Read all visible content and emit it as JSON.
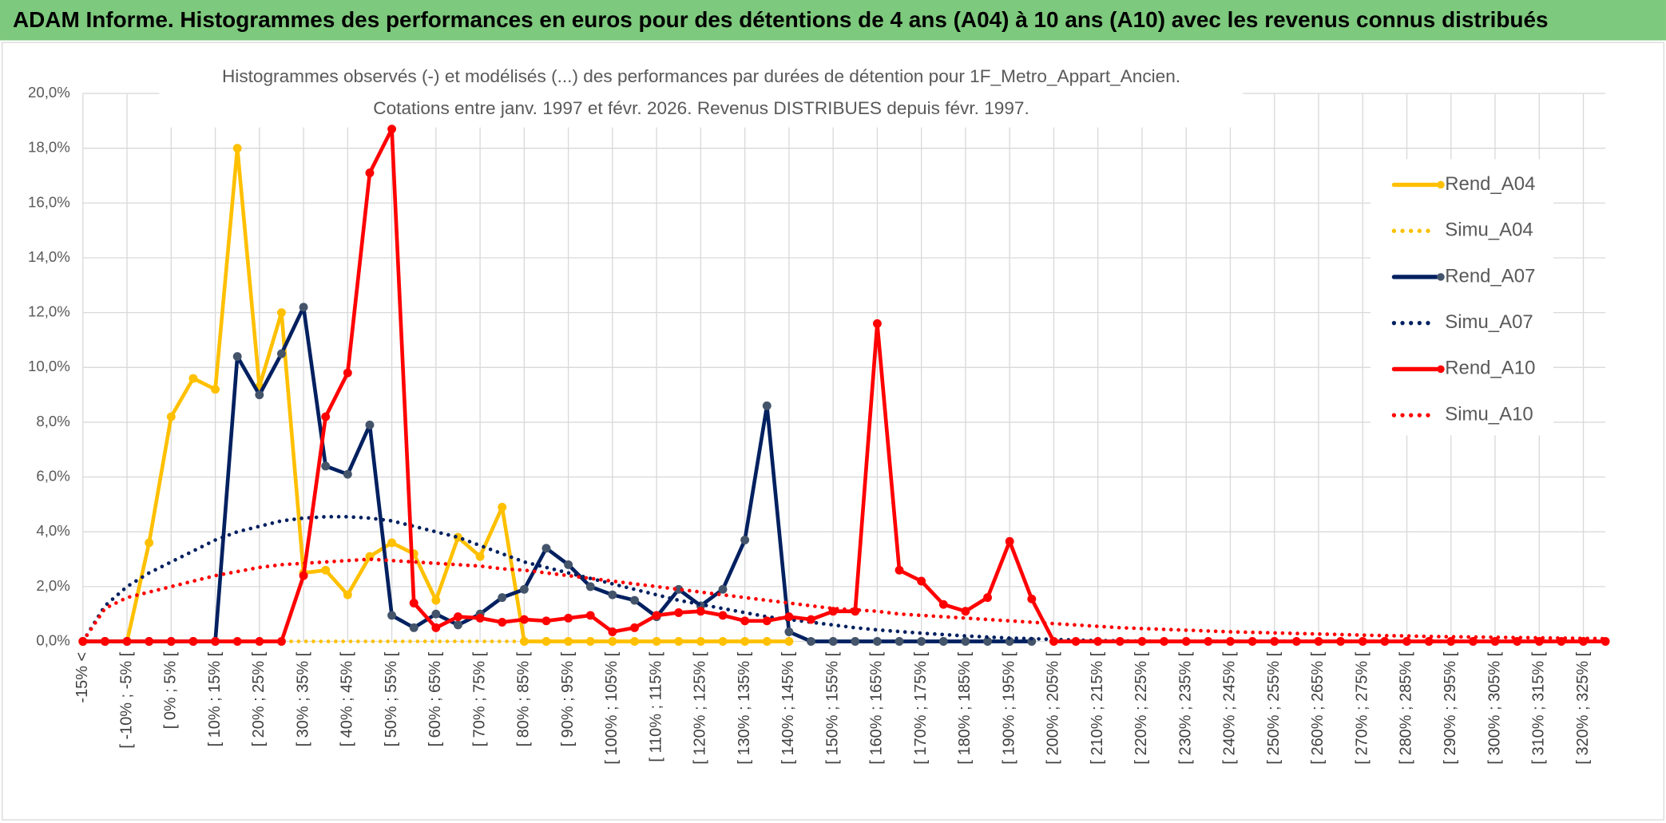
{
  "header": {
    "title": "ADAM Informe. Histogrammes des performances en euros pour des détentions de 4 ans (A04) à 10 ans (A10) avec les revenus connus distribués"
  },
  "chart_data": {
    "type": "line",
    "title": [
      "Histogrammes observés (-) et modélisés (...) des performances par durées de détention pour 1F_Metro_Appart_Ancien.",
      "Cotations entre janv. 1997 et févr. 2026. Revenus DISTRIBUES depuis févr. 1997."
    ],
    "categories": [
      "-15% <",
      null,
      "[ -10% ; -5% [",
      null,
      "[ 0% ; 5% [",
      null,
      "[ 10% ; 15% [",
      null,
      "[ 20% ; 25% [",
      null,
      "[ 30% ; 35% [",
      null,
      "[ 40% ; 45% [",
      null,
      "[ 50% ; 55% [",
      null,
      "[ 60% ; 65% [",
      null,
      "[ 70% ; 75% [",
      null,
      "[ 80% ; 85% [",
      null,
      "[ 90% ; 95% [",
      null,
      "[ 100% ; 105% [",
      null,
      "[ 110% ; 115% [",
      null,
      "[ 120% ; 125% [",
      null,
      "[ 130% ; 135% [",
      null,
      "[ 140% ; 145% [",
      null,
      "[ 150% ; 155% [",
      null,
      "[ 160% ; 165% [",
      null,
      "[ 170% ; 175% [",
      null,
      "[ 180% ; 185% [",
      null,
      "[ 190% ; 195% [",
      null,
      "[ 200% ; 205% [",
      null,
      "[ 210% ; 215% [",
      null,
      "[ 220% ; 225% [",
      null,
      "[ 230% ; 235% [",
      null,
      "[ 240% ; 245% [",
      null,
      "[ 250% ; 255% [",
      null,
      "[ 260% ; 265% [",
      null,
      "[ 270% ; 275% [",
      null,
      "[ 280% ; 285% [",
      null,
      "[ 290% ; 295% [",
      null,
      "[ 300% ; 305% [",
      null,
      "[ 310% ; 315% [",
      null,
      "[ 320% ; 325% [",
      null
    ],
    "series": [
      {
        "name": "Rend_A04",
        "color": "#ffc000",
        "style": "solid",
        "markers": true,
        "marker_color": "#ffc000",
        "values": [
          0,
          0,
          0,
          3.6,
          8.2,
          9.6,
          9.2,
          18.0,
          9.3,
          12.0,
          2.5,
          2.6,
          1.7,
          3.1,
          3.6,
          3.2,
          1.5,
          3.8,
          3.1,
          4.9,
          0,
          0,
          0,
          0,
          0,
          0,
          0,
          0,
          0,
          0,
          0,
          0,
          0,
          null,
          null,
          null,
          null,
          null,
          null,
          null,
          null,
          null,
          null,
          null,
          null,
          null,
          null,
          null,
          null,
          null,
          null,
          null,
          null,
          null,
          null,
          null,
          null,
          null,
          null,
          null,
          null,
          null,
          null,
          null,
          null,
          null,
          null,
          null,
          null,
          null
        ]
      },
      {
        "name": "Simu_A04",
        "color": "#ffc000",
        "style": "dotted",
        "markers": false,
        "values": [
          0,
          0,
          0,
          0,
          0,
          0,
          0,
          0,
          0,
          0,
          0,
          0,
          0,
          0,
          0,
          0,
          0,
          0,
          0,
          0,
          0,
          0,
          0,
          0,
          0,
          0,
          0,
          0,
          0,
          0,
          0,
          0,
          0,
          null,
          null,
          null,
          null,
          null,
          null,
          null,
          null,
          null,
          null,
          null,
          null,
          null,
          null,
          null,
          null,
          null,
          null,
          null,
          null,
          null,
          null,
          null,
          null,
          null,
          null,
          null,
          null,
          null,
          null,
          null,
          null,
          null,
          null,
          null,
          null,
          null
        ]
      },
      {
        "name": "Rend_A07",
        "color": "#002060",
        "style": "solid",
        "markers": true,
        "marker_color": "#44546a",
        "values": [
          0,
          0,
          0,
          0,
          0,
          0,
          0,
          10.4,
          9.0,
          10.5,
          12.2,
          6.4,
          6.1,
          7.9,
          0.95,
          0.5,
          1.0,
          0.6,
          1.0,
          1.6,
          1.9,
          3.4,
          2.8,
          2.0,
          1.7,
          1.5,
          0.9,
          1.9,
          1.3,
          1.9,
          3.7,
          8.6,
          0.35,
          0,
          0,
          0,
          0,
          0,
          0,
          0,
          0,
          0,
          0,
          0,
          null,
          null,
          null,
          null,
          null,
          null,
          null,
          null,
          null,
          null,
          null,
          null,
          null,
          null,
          null,
          null,
          null,
          null,
          null,
          null,
          null,
          null,
          null,
          null,
          null,
          null
        ]
      },
      {
        "name": "Simu_A07",
        "color": "#002060",
        "style": "dotted",
        "markers": false,
        "values": [
          0,
          1.3,
          2.0,
          2.5,
          2.9,
          3.3,
          3.7,
          4.0,
          4.2,
          4.4,
          4.5,
          4.55,
          4.55,
          4.5,
          4.4,
          4.2,
          4.0,
          3.8,
          3.5,
          3.2,
          2.9,
          2.7,
          2.5,
          2.3,
          2.1,
          1.9,
          1.7,
          1.5,
          1.35,
          1.2,
          1.05,
          0.9,
          0.8,
          0.7,
          0.6,
          0.5,
          0.42,
          0.36,
          0.3,
          0.25,
          0.2,
          0.16,
          0.12,
          0.1,
          0.07,
          0.05,
          0.03,
          0.02,
          0.01,
          0,
          0,
          0,
          0,
          0,
          0,
          0,
          0,
          0,
          0,
          0,
          0,
          0,
          0,
          0,
          0,
          0,
          0,
          0,
          0,
          0
        ]
      },
      {
        "name": "Rend_A10",
        "color": "#ff0000",
        "style": "solid",
        "markers": true,
        "marker_color": "#ff0000",
        "values": [
          0,
          0,
          0,
          0,
          0,
          0,
          0,
          0,
          0,
          0,
          2.4,
          8.2,
          9.8,
          17.1,
          18.7,
          1.4,
          0.5,
          0.9,
          0.85,
          0.7,
          0.8,
          0.75,
          0.85,
          0.95,
          0.35,
          0.5,
          0.95,
          1.05,
          1.1,
          0.95,
          0.75,
          0.75,
          0.9,
          0.8,
          1.1,
          1.1,
          11.6,
          2.6,
          2.2,
          1.35,
          1.1,
          1.6,
          3.65,
          1.55,
          0,
          0,
          0,
          0,
          0,
          0,
          0,
          0,
          0,
          0,
          0,
          0,
          0,
          0,
          0,
          0,
          0,
          0,
          0,
          0,
          0,
          0,
          0,
          0,
          0,
          0
        ]
      },
      {
        "name": "Simu_A10",
        "color": "#ff0000",
        "style": "dotted",
        "markers": false,
        "values": [
          0,
          1.2,
          1.6,
          1.8,
          2.0,
          2.2,
          2.4,
          2.55,
          2.7,
          2.8,
          2.85,
          2.9,
          2.95,
          3.0,
          2.95,
          2.9,
          2.85,
          2.8,
          2.75,
          2.65,
          2.6,
          2.5,
          2.4,
          2.3,
          2.2,
          2.1,
          2.0,
          1.9,
          1.8,
          1.7,
          1.6,
          1.5,
          1.4,
          1.3,
          1.2,
          1.15,
          1.1,
          1.0,
          0.95,
          0.9,
          0.85,
          0.8,
          0.75,
          0.7,
          0.65,
          0.6,
          0.55,
          0.5,
          0.47,
          0.44,
          0.41,
          0.38,
          0.35,
          0.33,
          0.31,
          0.29,
          0.27,
          0.25,
          0.23,
          0.21,
          0.2,
          0.18,
          0.17,
          0.16,
          0.15,
          0.14,
          0.13,
          0.12,
          0.11,
          0.1
        ]
      }
    ],
    "ylim": [
      0,
      20
    ],
    "yticks": [
      {
        "value": 0,
        "label": "0,0%"
      },
      {
        "value": 2,
        "label": "2,0%"
      },
      {
        "value": 4,
        "label": "4,0%"
      },
      {
        "value": 6,
        "label": "6,0%"
      },
      {
        "value": 8,
        "label": "8,0%"
      },
      {
        "value": 10,
        "label": "10,0%"
      },
      {
        "value": 12,
        "label": "12,0%"
      },
      {
        "value": 14,
        "label": "14,0%"
      },
      {
        "value": 16,
        "label": "16,0%"
      },
      {
        "value": 18,
        "label": "18,0%"
      },
      {
        "value": 20,
        "label": "20,0%"
      }
    ],
    "grid": true,
    "legend": "right"
  }
}
